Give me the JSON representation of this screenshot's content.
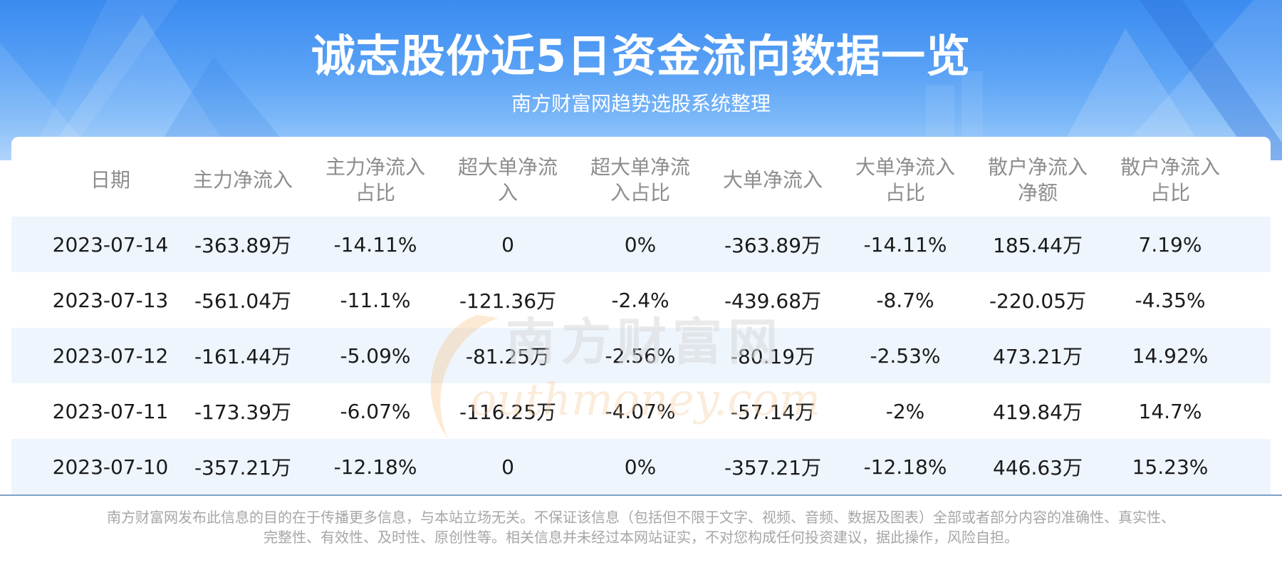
{
  "header": {
    "title": "诚志股份近5日资金流向数据一览",
    "subtitle": "南方财富网趋势选股系统整理"
  },
  "colors": {
    "header_blue": "#3a8bf0",
    "row_stripe": "#eef5fd",
    "header_text": "#8d8d8d",
    "cell_text": "#1a1a1a"
  },
  "table": {
    "columns": [
      [
        "日期"
      ],
      [
        "主力净流入"
      ],
      [
        "主力净流入",
        "占比"
      ],
      [
        "超大单净流",
        "入"
      ],
      [
        "超大单净流",
        "入占比"
      ],
      [
        "大单净流入"
      ],
      [
        "大单净流入",
        "占比"
      ],
      [
        "散户净流入",
        "净额"
      ],
      [
        "散户净流入",
        "占比"
      ]
    ],
    "rows": [
      [
        "2023-07-14",
        "-363.89万",
        "-14.11%",
        "0",
        "0%",
        "-363.89万",
        "-14.11%",
        "185.44万",
        "7.19%"
      ],
      [
        "2023-07-13",
        "-561.04万",
        "-11.1%",
        "-121.36万",
        "-2.4%",
        "-439.68万",
        "-8.7%",
        "-220.05万",
        "-4.35%"
      ],
      [
        "2023-07-12",
        "-161.44万",
        "-5.09%",
        "-81.25万",
        "-2.56%",
        "-80.19万",
        "-2.53%",
        "473.21万",
        "14.92%"
      ],
      [
        "2023-07-11",
        "-173.39万",
        "-6.07%",
        "-116.25万",
        "-4.07%",
        "-57.14万",
        "-2%",
        "419.84万",
        "14.7%"
      ],
      [
        "2023-07-10",
        "-357.21万",
        "-12.18%",
        "0",
        "0%",
        "-357.21万",
        "-12.18%",
        "446.63万",
        "15.23%"
      ]
    ]
  },
  "watermark": {
    "cn": "南方财富网",
    "en": "outhmoney.com"
  },
  "disclaimer": [
    "南方财富网发布此信息的目的在于传播更多信息，与本站立场无关。不保证该信息（包括但不限于文字、视频、音频、数据及图表）全部或者部分内容的准确性、真实性、",
    "完整性、有效性、及时性、原创性等。相关信息并未经过本网站证实，不对您构成任何投资建议，据此操作，风险自担。"
  ]
}
